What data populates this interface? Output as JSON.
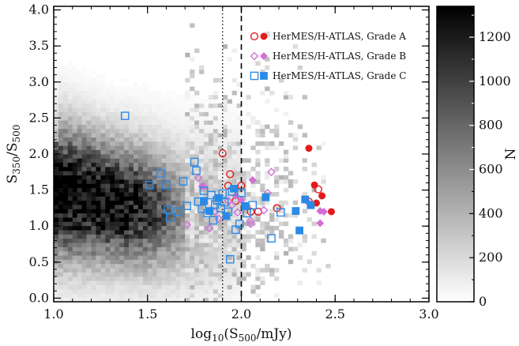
{
  "chart_data": {
    "type": "scatter",
    "title": "",
    "xlabel": "log10(S500/mJy)",
    "ylabel": "S350/S500",
    "xlim": [
      1.0,
      3.0
    ],
    "ylim": [
      -0.05,
      4.05
    ],
    "xticks": [
      "1.0",
      "1.5",
      "2.0",
      "2.5",
      "3.0"
    ],
    "yticks": [
      "0.0",
      "0.5",
      "1.0",
      "1.5",
      "2.0",
      "2.5",
      "3.0",
      "3.5",
      "4.0"
    ],
    "colorbar": {
      "label": "N",
      "range": [
        0,
        1340
      ],
      "ticks": [
        "0",
        "200",
        "400",
        "600",
        "800",
        "1000",
        "1200"
      ]
    },
    "vlines": [
      {
        "x": 1.9,
        "style": "dotted"
      },
      {
        "x": 2.0,
        "style": "dashed"
      }
    ],
    "background": "2D density histogram (grayscale), densest near x≈1.1–1.3, y≈1.3–1.7",
    "legend_position": "top-right",
    "colors": {
      "grade_a": "#e41a1c",
      "grade_b": "#d36fd6",
      "grade_c": "#2b8ae6"
    },
    "series": [
      {
        "name": "HerMES/H-ATLAS, Grade A",
        "marker": "circle",
        "color": "#e41a1c",
        "open": [
          [
            1.9,
            2.01
          ],
          [
            1.94,
            1.72
          ],
          [
            1.93,
            1.56
          ],
          [
            1.97,
            1.35
          ],
          [
            2.0,
            1.56
          ],
          [
            2.05,
            1.2
          ],
          [
            2.09,
            1.2
          ],
          [
            2.19,
            1.25
          ],
          [
            2.41,
            1.51
          ],
          [
            2.36,
            1.34
          ]
        ],
        "filled": [
          [
            2.36,
            2.08
          ],
          [
            2.39,
            1.57
          ],
          [
            2.43,
            1.42
          ],
          [
            2.48,
            1.2
          ],
          [
            2.4,
            1.32
          ]
        ]
      },
      {
        "name": "HerMES/H-ATLAS, Grade B",
        "marker": "diamond",
        "color": "#d36fd6",
        "open": [
          [
            1.77,
            1.67
          ],
          [
            1.71,
            1.02
          ],
          [
            1.93,
            1.35
          ],
          [
            1.98,
            1.19
          ],
          [
            2.05,
            1.07
          ],
          [
            2.05,
            1.03
          ],
          [
            2.14,
            1.46
          ],
          [
            2.16,
            1.75
          ],
          [
            2.12,
            1.22
          ],
          [
            1.86,
            1.2
          ],
          [
            1.88,
            1.1
          ],
          [
            1.83,
            0.97
          ],
          [
            1.95,
            1.29
          ],
          [
            1.8,
            1.55
          ]
        ],
        "filled": [
          [
            1.79,
            1.55
          ],
          [
            1.97,
            1.42
          ],
          [
            2.0,
            1.36
          ],
          [
            2.06,
            1.64
          ],
          [
            2.36,
            1.32
          ],
          [
            2.42,
            1.21
          ],
          [
            2.44,
            1.2
          ],
          [
            2.42,
            1.04
          ]
        ]
      },
      {
        "name": "HerMES/H-ATLAS, Grade C",
        "marker": "square",
        "color": "#2b8ae6",
        "open": [
          [
            1.38,
            2.53
          ],
          [
            1.51,
            1.57
          ],
          [
            1.57,
            1.73
          ],
          [
            1.6,
            1.57
          ],
          [
            1.61,
            1.23
          ],
          [
            1.62,
            1.12
          ],
          [
            1.66,
            1.2
          ],
          [
            1.69,
            1.62
          ],
          [
            1.71,
            1.28
          ],
          [
            1.75,
            1.89
          ],
          [
            1.76,
            1.77
          ],
          [
            1.77,
            1.34
          ],
          [
            1.79,
            1.24
          ],
          [
            1.8,
            1.49
          ],
          [
            1.82,
            1.18
          ],
          [
            1.84,
            1.43
          ],
          [
            1.85,
            1.08
          ],
          [
            1.86,
            1.3
          ],
          [
            1.87,
            1.36
          ],
          [
            1.89,
            1.25
          ],
          [
            1.9,
            1.45
          ],
          [
            1.91,
            1.33
          ],
          [
            1.93,
            1.2
          ],
          [
            1.94,
            0.54
          ],
          [
            1.95,
            1.48
          ],
          [
            1.97,
            0.95
          ],
          [
            1.99,
            1.03
          ],
          [
            2.0,
            1.46
          ],
          [
            2.03,
            1.18
          ],
          [
            2.06,
            1.29
          ],
          [
            2.16,
            0.83
          ],
          [
            2.21,
            1.19
          ]
        ],
        "filled": [
          [
            1.8,
            1.35
          ],
          [
            1.83,
            1.21
          ],
          [
            1.88,
            1.39
          ],
          [
            1.92,
            1.14
          ],
          [
            1.96,
            1.52
          ],
          [
            2.02,
            1.28
          ],
          [
            2.13,
            1.4
          ],
          [
            2.29,
            1.21
          ],
          [
            2.31,
            0.94
          ],
          [
            2.34,
            1.37
          ],
          [
            2.37,
            1.29
          ]
        ]
      }
    ]
  }
}
